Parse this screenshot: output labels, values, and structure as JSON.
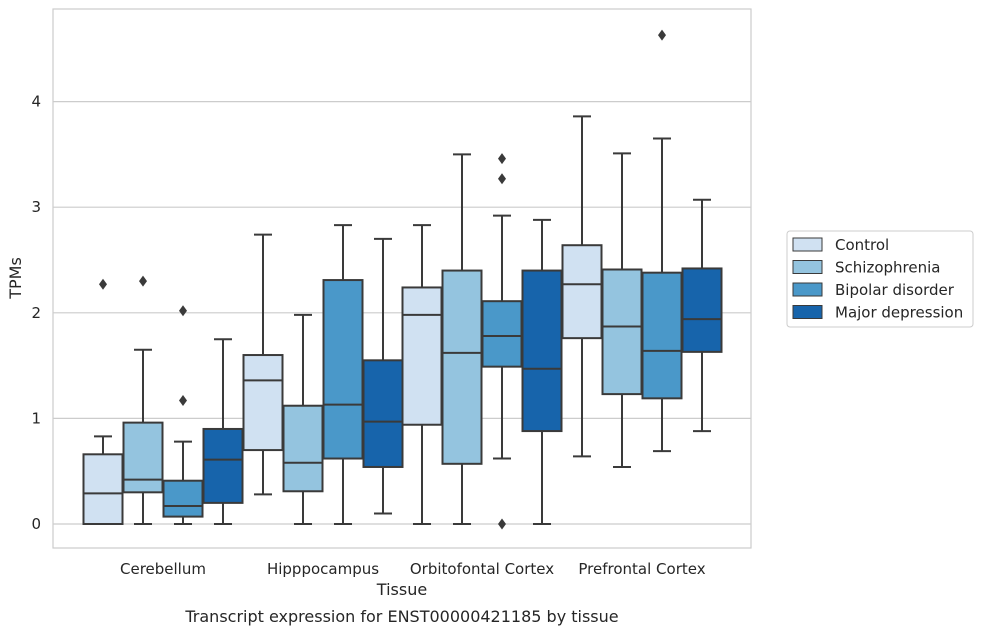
{
  "chart_data": {
    "type": "boxplot",
    "title": "Transcript expression for ENST00000421185 by tissue",
    "xlabel": "Tissue",
    "ylabel": "TPMs",
    "ylim": [
      -0.22,
      4.88
    ],
    "yticks": [
      0,
      1,
      2,
      3,
      4
    ],
    "grid": "horizontal",
    "legend_position": "right",
    "categories": [
      "Cerebellum",
      "Hipppocampus",
      "Orbitofontal Cortex",
      "Prefrontal Cortex"
    ],
    "series": [
      {
        "name": "Control",
        "color": "#d0e1f2",
        "boxes": [
          {
            "whislo": 0.0,
            "q1": 0.0,
            "med": 0.29,
            "q3": 0.66,
            "whishi": 0.83,
            "fliers": [
              2.27
            ]
          },
          {
            "whislo": 0.28,
            "q1": 0.7,
            "med": 1.36,
            "q3": 1.6,
            "whishi": 2.74,
            "fliers": []
          },
          {
            "whislo": 0.0,
            "q1": 0.94,
            "med": 1.98,
            "q3": 2.24,
            "whishi": 2.83,
            "fliers": []
          },
          {
            "whislo": 0.64,
            "q1": 1.76,
            "med": 2.27,
            "q3": 2.64,
            "whishi": 3.86,
            "fliers": []
          }
        ]
      },
      {
        "name": "Schizophrenia",
        "color": "#94c4df",
        "boxes": [
          {
            "whislo": 0.0,
            "q1": 0.3,
            "med": 0.42,
            "q3": 0.96,
            "whishi": 1.65,
            "fliers": [
              2.3
            ]
          },
          {
            "whislo": 0.0,
            "q1": 0.31,
            "med": 0.58,
            "q3": 1.12,
            "whishi": 1.98,
            "fliers": []
          },
          {
            "whislo": 0.0,
            "q1": 0.57,
            "med": 1.62,
            "q3": 2.4,
            "whishi": 3.5,
            "fliers": []
          },
          {
            "whislo": 0.54,
            "q1": 1.23,
            "med": 1.87,
            "q3": 2.41,
            "whishi": 3.51,
            "fliers": []
          }
        ]
      },
      {
        "name": "Bipolar disorder",
        "color": "#4a98c9",
        "boxes": [
          {
            "whislo": 0.0,
            "q1": 0.07,
            "med": 0.17,
            "q3": 0.41,
            "whishi": 0.78,
            "fliers": [
              1.17,
              2.02
            ]
          },
          {
            "whislo": 0.0,
            "q1": 0.62,
            "med": 1.13,
            "q3": 2.31,
            "whishi": 2.83,
            "fliers": []
          },
          {
            "whislo": 0.62,
            "q1": 1.49,
            "med": 1.78,
            "q3": 2.11,
            "whishi": 2.92,
            "fliers": [
              0.0,
              3.27,
              3.46
            ]
          },
          {
            "whislo": 0.69,
            "q1": 1.19,
            "med": 1.64,
            "q3": 2.38,
            "whishi": 3.65,
            "fliers": [
              4.63
            ]
          }
        ]
      },
      {
        "name": "Major depression",
        "color": "#1764ab",
        "boxes": [
          {
            "whislo": 0.0,
            "q1": 0.2,
            "med": 0.61,
            "q3": 0.9,
            "whishi": 1.75,
            "fliers": []
          },
          {
            "whislo": 0.1,
            "q1": 0.54,
            "med": 0.97,
            "q3": 1.55,
            "whishi": 2.7,
            "fliers": []
          },
          {
            "whislo": 0.0,
            "q1": 0.88,
            "med": 1.47,
            "q3": 2.4,
            "whishi": 2.88,
            "fliers": []
          },
          {
            "whislo": 0.88,
            "q1": 1.63,
            "med": 1.94,
            "q3": 2.42,
            "whishi": 3.07,
            "fliers": []
          }
        ]
      }
    ]
  }
}
